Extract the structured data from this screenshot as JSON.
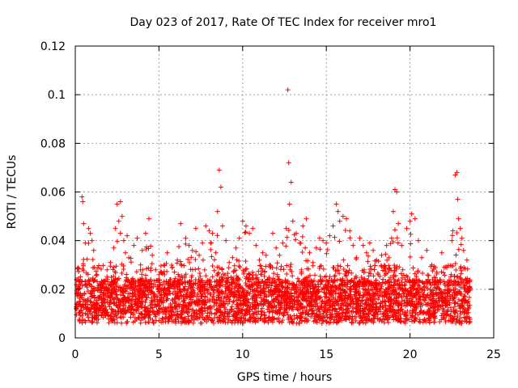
{
  "chart_data": {
    "type": "scatter",
    "title": "Day 023 of 2017, Rate Of TEC Index for receiver mro1",
    "xlabel": "GPS time / hours",
    "ylabel": "ROTI / TECUs",
    "xlim": [
      0,
      25
    ],
    "ylim": [
      0,
      0.12
    ],
    "xticks": [
      0,
      5,
      10,
      15,
      20,
      25
    ],
    "xtick_labels": [
      "0",
      "5",
      "10",
      "15",
      "20",
      "25"
    ],
    "yticks": [
      0,
      0.02,
      0.04,
      0.06,
      0.08,
      0.1,
      0.12
    ],
    "ytick_labels": [
      "0",
      "0.02",
      "0.04",
      "0.06",
      "0.08",
      "0.1",
      "0.12"
    ],
    "grid": true,
    "marker": "+",
    "color": "#ff0000",
    "series": [
      {
        "name": "mro1",
        "description": "dense ROTI samples mostly between 0.005 and 0.03 TECU/min across 0–23.6 h",
        "points": [
          [
            0.1,
            0.012
          ],
          [
            0.2,
            0.018
          ],
          [
            0.3,
            0.022
          ],
          [
            0.4,
            0.058
          ],
          [
            0.45,
            0.056
          ],
          [
            0.5,
            0.047
          ],
          [
            0.6,
            0.039
          ],
          [
            0.8,
            0.045
          ],
          [
            0.9,
            0.043
          ],
          [
            1.0,
            0.04
          ],
          [
            1.1,
            0.036
          ],
          [
            1.3,
            0.026
          ],
          [
            1.6,
            0.021
          ],
          [
            1.9,
            0.028
          ],
          [
            2.1,
            0.031
          ],
          [
            2.3,
            0.037
          ],
          [
            2.4,
            0.045
          ],
          [
            2.5,
            0.055
          ],
          [
            2.6,
            0.048
          ],
          [
            2.7,
            0.056
          ],
          [
            2.8,
            0.05
          ],
          [
            2.9,
            0.04
          ],
          [
            3.0,
            0.035
          ],
          [
            3.1,
            0.042
          ],
          [
            3.2,
            0.033
          ],
          [
            3.5,
            0.038
          ],
          [
            3.7,
            0.041
          ],
          [
            3.9,
            0.03
          ],
          [
            4.0,
            0.036
          ],
          [
            4.2,
            0.043
          ],
          [
            4.4,
            0.049
          ],
          [
            4.6,
            0.034
          ],
          [
            4.8,
            0.028
          ],
          [
            5.0,
            0.026
          ],
          [
            5.3,
            0.03
          ],
          [
            5.5,
            0.035
          ],
          [
            5.8,
            0.029
          ],
          [
            6.1,
            0.032
          ],
          [
            6.3,
            0.047
          ],
          [
            6.6,
            0.041
          ],
          [
            6.8,
            0.038
          ],
          [
            7.0,
            0.036
          ],
          [
            7.2,
            0.045
          ],
          [
            7.4,
            0.034
          ],
          [
            7.6,
            0.039
          ],
          [
            7.8,
            0.046
          ],
          [
            8.0,
            0.044
          ],
          [
            8.2,
            0.043
          ],
          [
            8.4,
            0.035
          ],
          [
            8.5,
            0.052
          ],
          [
            8.6,
            0.069
          ],
          [
            8.7,
            0.062
          ],
          [
            8.8,
            0.046
          ],
          [
            9.0,
            0.04
          ],
          [
            9.2,
            0.031
          ],
          [
            9.4,
            0.033
          ],
          [
            9.6,
            0.037
          ],
          [
            9.8,
            0.041
          ],
          [
            10.0,
            0.048
          ],
          [
            10.2,
            0.046
          ],
          [
            10.4,
            0.043
          ],
          [
            10.6,
            0.045
          ],
          [
            10.8,
            0.038
          ],
          [
            11.0,
            0.032
          ],
          [
            11.2,
            0.035
          ],
          [
            11.4,
            0.034
          ],
          [
            11.6,
            0.03
          ],
          [
            11.8,
            0.043
          ],
          [
            12.0,
            0.037
          ],
          [
            12.2,
            0.034
          ],
          [
            12.4,
            0.039
          ],
          [
            12.6,
            0.045
          ],
          [
            12.7,
            0.102
          ],
          [
            12.75,
            0.072
          ],
          [
            12.8,
            0.055
          ],
          [
            12.9,
            0.064
          ],
          [
            13.0,
            0.048
          ],
          [
            13.2,
            0.043
          ],
          [
            13.4,
            0.039
          ],
          [
            13.6,
            0.046
          ],
          [
            13.8,
            0.049
          ],
          [
            14.0,
            0.035
          ],
          [
            14.2,
            0.031
          ],
          [
            14.4,
            0.037
          ],
          [
            14.6,
            0.041
          ],
          [
            14.8,
            0.04
          ],
          [
            15.0,
            0.039
          ],
          [
            15.2,
            0.042
          ],
          [
            15.4,
            0.046
          ],
          [
            15.6,
            0.055
          ],
          [
            15.7,
            0.052
          ],
          [
            15.8,
            0.048
          ],
          [
            16.0,
            0.05
          ],
          [
            16.2,
            0.049
          ],
          [
            16.4,
            0.044
          ],
          [
            16.6,
            0.038
          ],
          [
            16.8,
            0.033
          ],
          [
            17.0,
            0.041
          ],
          [
            17.2,
            0.038
          ],
          [
            17.4,
            0.035
          ],
          [
            17.6,
            0.039
          ],
          [
            17.8,
            0.036
          ],
          [
            18.0,
            0.032
          ],
          [
            18.3,
            0.034
          ],
          [
            18.6,
            0.038
          ],
          [
            18.9,
            0.041
          ],
          [
            19.0,
            0.052
          ],
          [
            19.1,
            0.061
          ],
          [
            19.2,
            0.06
          ],
          [
            19.3,
            0.047
          ],
          [
            19.5,
            0.038
          ],
          [
            19.8,
            0.045
          ],
          [
            20.0,
            0.048
          ],
          [
            20.1,
            0.051
          ],
          [
            20.3,
            0.049
          ],
          [
            20.5,
            0.04
          ],
          [
            20.7,
            0.033
          ],
          [
            21.0,
            0.036
          ],
          [
            21.3,
            0.03
          ],
          [
            21.6,
            0.027
          ],
          [
            21.9,
            0.035
          ],
          [
            22.2,
            0.029
          ],
          [
            22.5,
            0.04
          ],
          [
            22.7,
            0.067
          ],
          [
            22.8,
            0.068
          ],
          [
            22.85,
            0.057
          ],
          [
            22.9,
            0.049
          ],
          [
            23.0,
            0.045
          ],
          [
            23.1,
            0.041
          ],
          [
            23.2,
            0.036
          ],
          [
            23.4,
            0.032
          ],
          [
            23.6,
            0.02
          ]
        ]
      }
    ]
  }
}
